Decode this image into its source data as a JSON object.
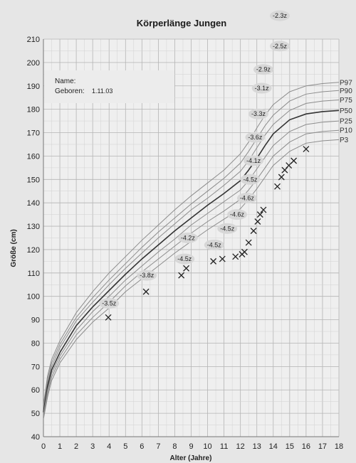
{
  "chart_data": {
    "type": "line",
    "title": "Körperlänge Jungen",
    "xlabel": "Alter (Jahre)",
    "ylabel": "Größe (cm)",
    "xlim": [
      0,
      18
    ],
    "ylim": [
      40,
      210
    ],
    "x_ticks": [
      0,
      1,
      2,
      3,
      4,
      5,
      6,
      7,
      8,
      9,
      10,
      11,
      12,
      13,
      14,
      15,
      16,
      17,
      18
    ],
    "y_ticks": [
      40,
      50,
      60,
      70,
      80,
      90,
      100,
      110,
      120,
      130,
      140,
      150,
      160,
      170,
      180,
      190,
      200,
      210
    ],
    "grid": true,
    "info_box": {
      "name_label": "Name:",
      "born_label": "Geboren:",
      "born_value": "1.11.03"
    },
    "percentile_x": [
      0,
      0.25,
      0.5,
      1,
      2,
      3,
      4,
      5,
      6,
      7,
      8,
      9,
      10,
      11,
      12,
      12.5,
      13,
      13.5,
      14,
      15,
      16,
      17,
      18
    ],
    "percentiles": [
      {
        "name": "P97",
        "values": [
          53.5,
          66,
          73,
          81,
          93,
          102,
          110,
          117,
          124,
          130.5,
          137,
          143,
          148.5,
          154,
          161,
          166,
          172,
          177.5,
          182,
          187.5,
          190,
          191,
          191.5
        ]
      },
      {
        "name": "P90",
        "values": [
          52.5,
          64.5,
          71.5,
          79.5,
          91,
          99.5,
          107,
          114,
          121,
          127.5,
          133.5,
          139.5,
          145,
          150.5,
          157,
          162,
          167.5,
          173,
          177.5,
          183.5,
          186.5,
          187.5,
          188
        ]
      },
      {
        "name": "P75",
        "values": [
          51.5,
          63,
          70,
          78,
          89.5,
          97.5,
          105,
          112,
          118.5,
          125,
          131,
          137,
          142,
          147.5,
          153.5,
          158,
          163.5,
          169,
          173.5,
          179.5,
          182.5,
          183.5,
          184
        ]
      },
      {
        "name": "P50",
        "values": [
          50.5,
          61.5,
          68.5,
          76,
          87.5,
          95.5,
          102.5,
          109.5,
          116,
          122,
          128,
          133.5,
          139,
          144,
          149.5,
          154,
          159,
          164.5,
          169.5,
          175.5,
          178,
          179,
          179.5
        ]
      },
      {
        "name": "P25",
        "values": [
          49.5,
          60,
          67,
          74.5,
          85.5,
          93.5,
          100,
          107,
          113,
          119,
          124.5,
          130.5,
          135.5,
          140.5,
          145.5,
          149.5,
          154.5,
          159.5,
          164.5,
          170.5,
          173.5,
          174.5,
          175
        ]
      },
      {
        "name": "P10",
        "values": [
          48.5,
          58.5,
          65.5,
          73,
          83.5,
          91,
          97.5,
          104.5,
          110.5,
          116,
          121.5,
          127,
          132,
          136.5,
          141.5,
          145.5,
          150,
          155,
          160,
          166,
          169.5,
          170.5,
          171
        ]
      },
      {
        "name": "P3",
        "values": [
          47.5,
          57,
          64,
          71.5,
          81.5,
          89,
          95,
          102,
          107.5,
          113,
          118.5,
          123.5,
          128.5,
          133,
          137.5,
          141.5,
          146,
          151,
          156,
          162,
          165.5,
          166.5,
          167
        ]
      }
    ],
    "measurements": [
      {
        "x": 3.95,
        "y": 91
      },
      {
        "x": 6.25,
        "y": 102
      },
      {
        "x": 8.4,
        "y": 109
      },
      {
        "x": 8.7,
        "y": 112
      },
      {
        "x": 10.35,
        "y": 115
      },
      {
        "x": 10.9,
        "y": 116
      },
      {
        "x": 11.7,
        "y": 117
      },
      {
        "x": 12.1,
        "y": 118
      },
      {
        "x": 12.25,
        "y": 119
      },
      {
        "x": 12.5,
        "y": 123
      },
      {
        "x": 12.8,
        "y": 128
      },
      {
        "x": 13.05,
        "y": 132
      },
      {
        "x": 13.2,
        "y": 135
      },
      {
        "x": 13.4,
        "y": 137
      },
      {
        "x": 14.25,
        "y": 147
      },
      {
        "x": 14.5,
        "y": 151
      },
      {
        "x": 14.7,
        "y": 154
      },
      {
        "x": 14.95,
        "y": 156
      },
      {
        "x": 15.25,
        "y": 158
      },
      {
        "x": 16.0,
        "y": 163
      }
    ],
    "z_labels": [
      {
        "text": "-3.5z",
        "x": 4.0,
        "y": 97
      },
      {
        "text": "-3.8z",
        "x": 6.3,
        "y": 109
      },
      {
        "text": "-4.5z",
        "x": 8.6,
        "y": 116
      },
      {
        "text": "-4.2z",
        "x": 8.8,
        "y": 125
      },
      {
        "text": "-4.5z",
        "x": 10.4,
        "y": 122
      },
      {
        "text": "-4.5z",
        "x": 11.2,
        "y": 129
      },
      {
        "text": "-4.6z",
        "x": 11.8,
        "y": 135
      },
      {
        "text": "-4.6z",
        "x": 12.4,
        "y": 142
      },
      {
        "text": "-4.5z",
        "x": 12.6,
        "y": 150
      },
      {
        "text": "-4.1z",
        "x": 12.8,
        "y": 158
      },
      {
        "text": "-3.6z",
        "x": 12.9,
        "y": 168
      },
      {
        "text": "-3.3z",
        "x": 13.1,
        "y": 178
      },
      {
        "text": "-3.1z",
        "x": 13.3,
        "y": 189
      },
      {
        "text": "-2.9z",
        "x": 13.4,
        "y": 197
      },
      {
        "text": "-2.5z",
        "x": 14.4,
        "y": 207
      },
      {
        "text": "-2.3z",
        "x": 14.4,
        "y": 220
      }
    ]
  }
}
